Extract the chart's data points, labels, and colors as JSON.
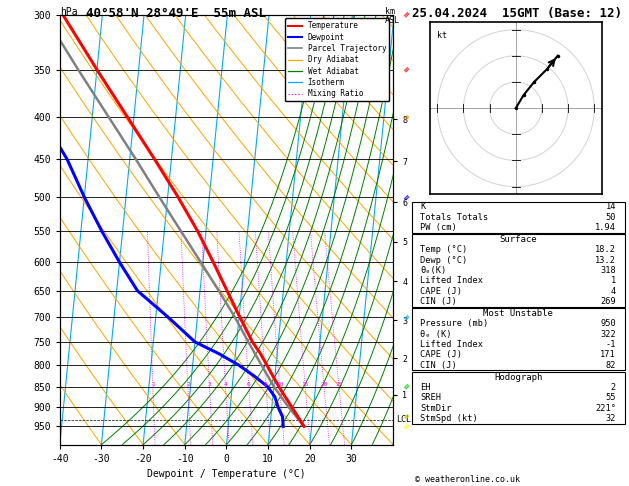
{
  "title_left": "40°58'N 28°49'E  55m ASL",
  "title_right": "25.04.2024  15GMT (Base: 12)",
  "xlabel": "Dewpoint / Temperature (°C)",
  "ylabel_left": "hPa",
  "pressure_levels": [
    300,
    350,
    400,
    450,
    500,
    550,
    600,
    650,
    700,
    750,
    800,
    850,
    900,
    950
  ],
  "xlim": [
    -40,
    40
  ],
  "skew_factor": 8.5,
  "temp_profile": {
    "pressure": [
      950,
      925,
      900,
      875,
      850,
      825,
      800,
      775,
      750,
      700,
      650,
      600,
      550,
      500,
      450,
      400,
      350,
      300
    ],
    "temp": [
      18.2,
      16.5,
      14.8,
      13.0,
      11.2,
      9.5,
      7.8,
      6.0,
      3.8,
      0.2,
      -3.5,
      -7.5,
      -12.0,
      -17.5,
      -24.0,
      -31.5,
      -40.0,
      -49.5
    ]
  },
  "dewp_profile": {
    "pressure": [
      950,
      925,
      900,
      875,
      850,
      825,
      800,
      775,
      750,
      700,
      650,
      600,
      550,
      500,
      450,
      400,
      350,
      300
    ],
    "temp": [
      13.2,
      12.8,
      11.5,
      10.5,
      8.5,
      5.0,
      1.0,
      -4.0,
      -10.0,
      -17.0,
      -25.0,
      -30.0,
      -35.0,
      -40.0,
      -45.0,
      -52.0,
      -58.0,
      -65.0
    ]
  },
  "parcel_profile": {
    "pressure": [
      950,
      900,
      850,
      800,
      750,
      700,
      650,
      600,
      550,
      500,
      450,
      400,
      350,
      300
    ],
    "temp": [
      18.2,
      14.0,
      10.0,
      6.5,
      2.8,
      -1.0,
      -5.5,
      -10.5,
      -16.0,
      -22.0,
      -28.5,
      -36.0,
      -44.5,
      -54.0
    ]
  },
  "lcl_pressure": 932,
  "km_ticks": [
    1,
    2,
    3,
    4,
    5,
    6,
    7,
    8
  ],
  "km_pressures": [
    870,
    785,
    706,
    633,
    567,
    507,
    452,
    402
  ],
  "mixing_ratio_values": [
    1,
    2,
    3,
    4,
    6,
    8,
    10,
    15,
    20,
    25
  ],
  "colors": {
    "temperature": "#ff0000",
    "dewpoint": "#0000ff",
    "parcel": "#808080",
    "dry_adiabat": "#ffa500",
    "wet_adiabat": "#008000",
    "isotherm": "#00aaff",
    "mixing_ratio": "#ff00ff",
    "background": "#ffffff",
    "grid": "#000000"
  },
  "legend_items": [
    "Temperature",
    "Dewpoint",
    "Parcel Trajectory",
    "Dry Adiabat",
    "Wet Adiabat",
    "Isotherm",
    "Mixing Ratio"
  ],
  "stats": {
    "K": 14,
    "Totals_Totals": 50,
    "PW_cm": "1.94",
    "Surface_Temp": "18.2",
    "Surface_Dewp": "13.2",
    "Surface_theta_e": 318,
    "Surface_LI": 1,
    "Surface_CAPE": 4,
    "Surface_CIN": 269,
    "MU_Pressure": 950,
    "MU_theta_e": 322,
    "MU_LI": -1,
    "MU_CAPE": 171,
    "MU_CIN": 82,
    "EH": 2,
    "SREH": 55,
    "StmDir": 221,
    "StmSpd": 32
  },
  "hodograph_u": [
    0,
    3,
    7,
    12,
    16
  ],
  "hodograph_v": [
    0,
    5,
    10,
    15,
    20
  ],
  "wind_barbs": {
    "pressures": [
      300,
      350,
      400,
      500,
      700,
      850,
      925,
      950
    ],
    "colors": [
      "#ff0000",
      "#ff0000",
      "#ff8800",
      "#0000ff",
      "#00aaff",
      "#00cc00",
      "#cccc00",
      "#ffff00"
    ]
  }
}
